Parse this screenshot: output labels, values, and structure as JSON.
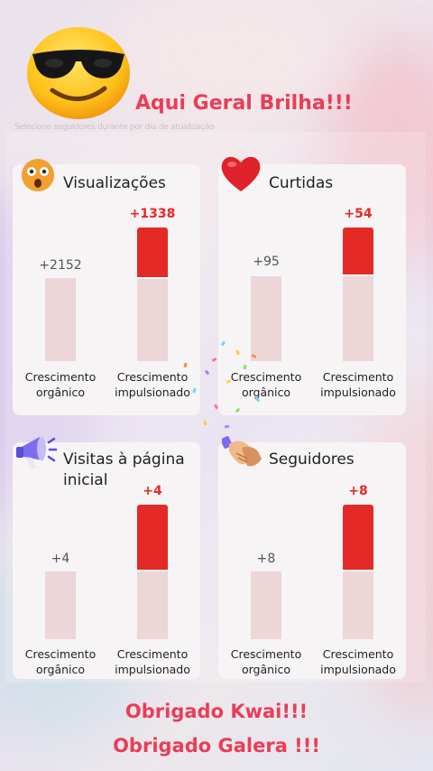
{
  "header": {
    "title": "Aqui Geral Brilha!!!",
    "faint_text": "Selecione seguidores durante por dia de atualização"
  },
  "cards": [
    {
      "title": "Visualizações",
      "icon": "surprised-face-icon",
      "organic_value": "+2152",
      "boost_value": "+1338",
      "organic_label_1": "Crescimento",
      "organic_label_2": "orgânico",
      "boost_label_1": "Crescimento",
      "boost_label_2": "impulsionado"
    },
    {
      "title": "Curtidas",
      "icon": "heart-icon",
      "organic_value": "+95",
      "boost_value": "+54",
      "organic_label_1": "Crescimento",
      "organic_label_2": "orgânico",
      "boost_label_1": "Crescimento",
      "boost_label_2": "impulsionado"
    },
    {
      "title_1": "Visitas à página",
      "title_2": "inicial",
      "icon": "megaphone-icon",
      "organic_value": "+4",
      "boost_value": "+4",
      "organic_label_1": "Crescimento",
      "organic_label_2": "orgânico",
      "boost_label_1": "Crescimento",
      "boost_label_2": "impulsionado"
    },
    {
      "title": "Seguidores",
      "icon": "handshake-icon",
      "organic_value": "+8",
      "boost_value": "+8",
      "organic_label_1": "Crescimento",
      "organic_label_2": "orgânico",
      "boost_label_1": "Crescimento",
      "boost_label_2": "impulsionado"
    }
  ],
  "footer": {
    "line1": "Obrigado Kwai!!!",
    "line2": "Obrigado Galera !!!"
  },
  "colors": {
    "accent": "#ea3d57",
    "boost_bar": "#e42a27",
    "organic_bar": "#ecd6d7"
  }
}
